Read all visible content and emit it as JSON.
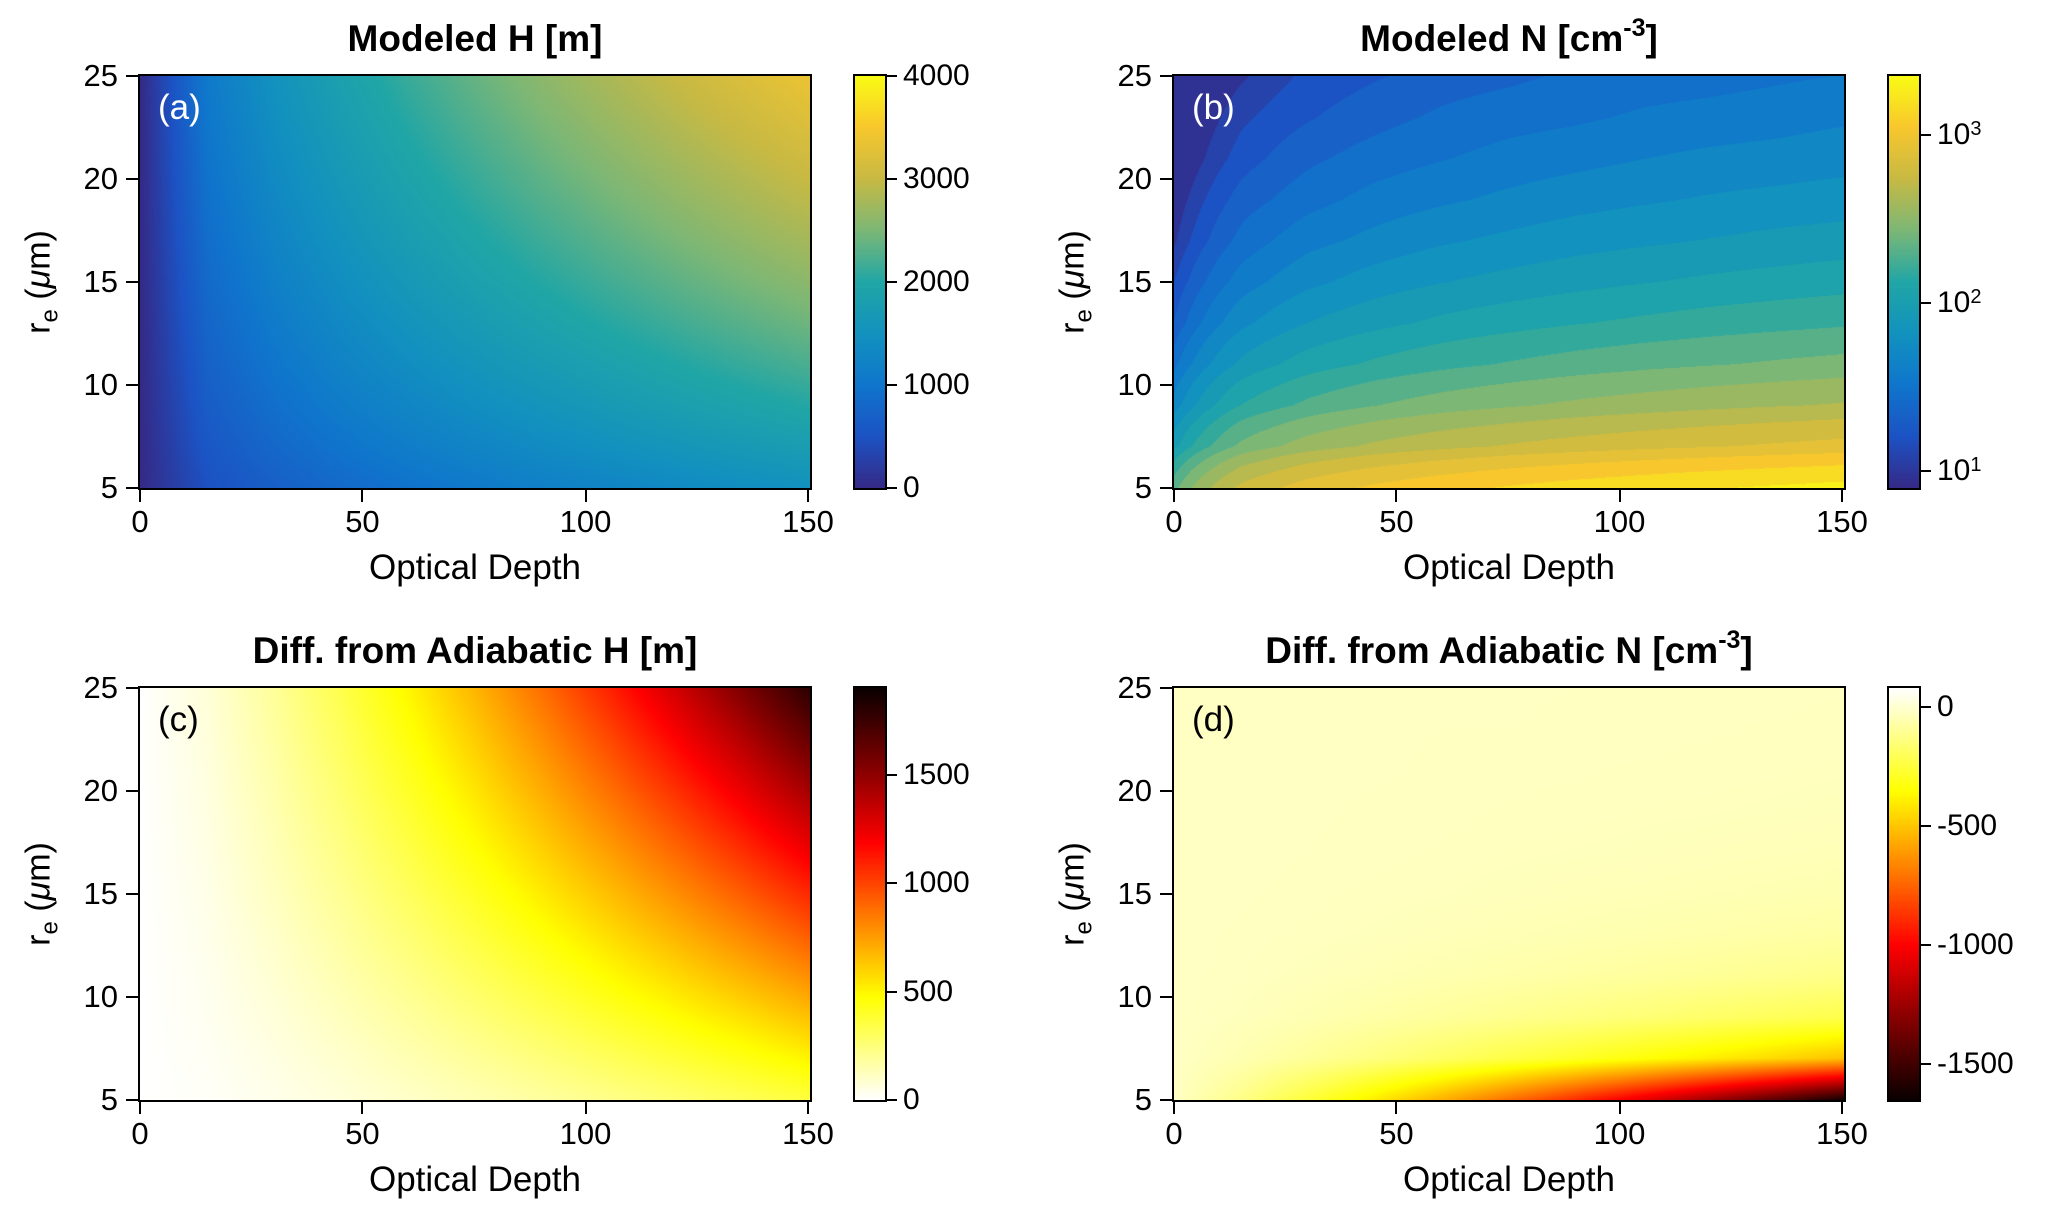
{
  "figure": {
    "background": "#ffffff"
  },
  "axes_shared": {
    "xlabel": "Optical Depth",
    "ylabel": {
      "pre": "r",
      "sub": "e",
      "open": " (",
      "mu": "μ",
      "close": "m)"
    },
    "colors": {
      "axis": "#000000",
      "parula_low": "#352a87",
      "parula_high": "#f9fb15",
      "hot_low": "#ffffff",
      "hot_high": "#000000"
    }
  },
  "chart_data": [
    {
      "type": "heatmap",
      "panel_label": "(a)",
      "panel_label_color": "#ffffff",
      "title": {
        "text": "Modeled H [m]",
        "sup": "",
        "close": ""
      },
      "xlabel": "Optical Depth",
      "ylabel": "r_e (μm)",
      "colormap": "parula",
      "scale": "linear",
      "clim": [
        0,
        4000
      ],
      "cbar": [
        0,
        4000
      ],
      "levels": 0,
      "xlim": [
        0,
        150
      ],
      "ylim": [
        5,
        25
      ],
      "x": [
        0,
        15,
        30,
        45,
        60,
        75,
        90,
        105,
        120,
        135,
        150
      ],
      "y": [
        5,
        7,
        9,
        11,
        13,
        15,
        17,
        19,
        21,
        23,
        25
      ],
      "x_ticks": [
        {
          "t": "0",
          "f": 0
        },
        {
          "t": "50",
          "f": 0.333
        },
        {
          "t": "100",
          "f": 0.667
        },
        {
          "t": "150",
          "f": 1
        }
      ],
      "y_ticks": [
        {
          "t": "5",
          "f": 0
        },
        {
          "t": "10",
          "f": 0.25
        },
        {
          "t": "15",
          "f": 0.5
        },
        {
          "t": "20",
          "f": 0.75
        },
        {
          "t": "25",
          "f": 1
        }
      ],
      "cbar_ticks": [
        {
          "t": "0",
          "f": 0
        },
        {
          "t": "1000",
          "f": 0.25
        },
        {
          "t": "2000",
          "f": 0.5
        },
        {
          "t": "3000",
          "f": 0.75
        },
        {
          "t": "4000",
          "f": 1
        }
      ],
      "values": [
        [
          0,
          476,
          674,
          825,
          953,
          1065,
          1167,
          1260,
          1347,
          1429,
          1506
        ],
        [
          0,
          564,
          797,
          976,
          1127,
          1260,
          1380,
          1491,
          1594,
          1691,
          1782
        ],
        [
          0,
          639,
          904,
          1107,
          1278,
          1429,
          1565,
          1691,
          1807,
          1917,
          2021
        ],
        [
          0,
          707,
          999,
          1224,
          1413,
          1580,
          1731,
          1869,
          1998,
          2120,
          2234
        ],
        [
          0,
          768,
          1086,
          1330,
          1536,
          1718,
          1881,
          2032,
          2172,
          2304,
          2429
        ],
        [
          0,
          825,
          1167,
          1429,
          1650,
          1845,
          2021,
          2183,
          2333,
          2475,
          2609
        ],
        [
          0,
          878,
          1242,
          1521,
          1756,
          1964,
          2151,
          2324,
          2484,
          2635,
          2777
        ],
        [
          0,
          928,
          1313,
          1608,
          1857,
          2076,
          2274,
          2457,
          2626,
          2785,
          2936
        ],
        [
          0,
          976,
          1380,
          1691,
          1952,
          2183,
          2391,
          2583,
          2761,
          2929,
          3087
        ],
        [
          0,
          1021,
          1445,
          1769,
          2043,
          2284,
          2502,
          2703,
          2890,
          3065,
          3231
        ],
        [
          0,
          1065,
          1506,
          1844,
          2130,
          2381,
          2609,
          2818,
          3012,
          3195,
          3368
        ]
      ]
    },
    {
      "type": "heatmap",
      "panel_label": "(b)",
      "panel_label_color": "#ffffff",
      "title": {
        "text": "Modeled N [cm",
        "sup": "-3",
        "close": "]"
      },
      "xlabel": "Optical Depth",
      "ylabel": "r_e (μm)",
      "colormap": "parula",
      "scale": "log10",
      "clim": [
        0.9,
        3.35
      ],
      "cbar": [
        0.9,
        3.35
      ],
      "levels": 20,
      "xlim": [
        0,
        150
      ],
      "ylim": [
        5,
        25
      ],
      "x": [
        0,
        15,
        30,
        45,
        60,
        75,
        90,
        105,
        120,
        135,
        150
      ],
      "y": [
        5,
        7,
        9,
        11,
        13,
        15,
        17,
        19,
        21,
        23,
        25
      ],
      "x_ticks": [
        {
          "t": "0",
          "f": 0
        },
        {
          "t": "50",
          "f": 0.333
        },
        {
          "t": "100",
          "f": 0.667
        },
        {
          "t": "150",
          "f": 1
        }
      ],
      "y_ticks": [
        {
          "t": "5",
          "f": 0
        },
        {
          "t": "10",
          "f": 0.25
        },
        {
          "t": "15",
          "f": 0.5
        },
        {
          "t": "20",
          "f": 0.75
        },
        {
          "t": "25",
          "f": 1
        }
      ],
      "cbar_ticks": [
        {
          "t": "10",
          "s": "1",
          "f": 0.041
        },
        {
          "t": "10",
          "s": "2",
          "f": 0.449
        },
        {
          "t": "10",
          "s": "3",
          "f": 0.857
        }
      ],
      "values": [
        [
          213,
          582,
          823,
          1008,
          1164,
          1302,
          1426,
          1540,
          1646,
          1746,
          1841
        ],
        [
          92,
          251,
          355,
          435,
          502,
          561,
          615,
          664,
          710,
          753,
          794
        ],
        [
          49,
          134,
          189,
          232,
          268,
          299,
          328,
          354,
          379,
          402,
          423
        ],
        [
          30,
          81,
          115,
          140,
          162,
          181,
          199,
          215,
          229,
          243,
          256
        ],
        [
          19,
          53,
          76,
          92,
          107,
          119,
          131,
          141,
          151,
          160,
          169
        ],
        [
          14,
          37,
          53,
          65,
          75,
          83,
          91,
          99,
          106,
          112,
          118
        ],
        [
          10,
          27,
          39,
          47,
          55,
          61,
          67,
          72,
          77,
          82,
          86
        ],
        [
          8,
          21,
          29,
          36,
          41,
          46,
          51,
          55,
          59,
          62,
          65
        ],
        [
          6,
          16,
          23,
          28,
          32,
          36,
          39,
          43,
          46,
          48,
          51
        ],
        [
          5,
          13,
          18,
          22,
          26,
          29,
          31,
          34,
          36,
          38,
          41
        ],
        [
          4,
          10,
          15,
          18,
          21,
          23,
          26,
          28,
          29,
          31,
          33
        ]
      ]
    },
    {
      "type": "heatmap",
      "panel_label": "(c)",
      "panel_label_color": "#000000",
      "title": {
        "text": "Diff. from Adiabatic H [m]",
        "sup": "",
        "close": ""
      },
      "xlabel": "Optical Depth",
      "ylabel": "r_e (μm)",
      "colormap": "hotr",
      "scale": "linear",
      "clim": [
        0,
        1900
      ],
      "cbar": [
        0,
        1900
      ],
      "levels": 0,
      "xlim": [
        0,
        150
      ],
      "ylim": [
        5,
        25
      ],
      "x": [
        0,
        15,
        30,
        45,
        60,
        75,
        90,
        105,
        120,
        135,
        150
      ],
      "y": [
        5,
        7,
        9,
        11,
        13,
        15,
        17,
        19,
        21,
        23,
        25
      ],
      "x_ticks": [
        {
          "t": "0",
          "f": 0
        },
        {
          "t": "50",
          "f": 0.333
        },
        {
          "t": "100",
          "f": 0.667
        },
        {
          "t": "150",
          "f": 1
        }
      ],
      "y_ticks": [
        {
          "t": "5",
          "f": 0
        },
        {
          "t": "10",
          "f": 0.25
        },
        {
          "t": "15",
          "f": 0.5
        },
        {
          "t": "20",
          "f": 0.75
        },
        {
          "t": "25",
          "f": 1
        }
      ],
      "cbar_ticks": [
        {
          "t": "0",
          "f": 0
        },
        {
          "t": "500",
          "f": 0.263
        },
        {
          "t": "1000",
          "f": 0.526
        },
        {
          "t": "1500",
          "f": 0.789
        }
      ],
      "values": [
        [
          0,
          14,
          38,
          67,
          100,
          136,
          176,
          218,
          263,
          310,
          360
        ],
        [
          0,
          20,
          53,
          93,
          140,
          191,
          246,
          306,
          369,
          434,
          504
        ],
        [
          0,
          26,
          68,
          120,
          179,
          245,
          317,
          393,
          474,
          558,
          648
        ],
        [
          0,
          31,
          83,
          147,
          219,
          300,
          387,
          481,
          579,
          682,
          792
        ],
        [
          0,
          37,
          98,
          173,
          259,
          354,
          457,
          568,
          684,
          806,
          935
        ],
        [
          0,
          43,
          114,
          200,
          299,
          408,
          528,
          655,
          790,
          930,
          1079
        ],
        [
          0,
          49,
          129,
          227,
          339,
          463,
          598,
          743,
          895,
          1054,
          1223
        ],
        [
          0,
          54,
          144,
          253,
          379,
          517,
          668,
          830,
          1000,
          1178,
          1367
        ],
        [
          0,
          60,
          159,
          280,
          419,
          572,
          739,
          918,
          1106,
          1302,
          1511
        ],
        [
          0,
          66,
          174,
          307,
          459,
          626,
          809,
          1005,
          1211,
          1426,
          1655
        ],
        [
          0,
          72,
          189,
          333,
          498,
          681,
          880,
          1092,
          1316,
          1550,
          1799
        ]
      ]
    },
    {
      "type": "heatmap",
      "panel_label": "(d)",
      "panel_label_color": "#000000",
      "title": {
        "text": "Diff. from Adiabatic N [cm",
        "sup": "-3",
        "close": "]"
      },
      "xlabel": "Optical Depth",
      "ylabel": "r_e (μm)",
      "colormap": "hotr",
      "scale": "linear",
      "clim": [
        80,
        -1650
      ],
      "cbar": [
        -1650,
        80
      ],
      "levels": 0,
      "xlim": [
        0,
        150
      ],
      "ylim": [
        5,
        25
      ],
      "x": [
        0,
        15,
        30,
        45,
        60,
        75,
        90,
        105,
        120,
        135,
        150
      ],
      "y": [
        5,
        7,
        9,
        11,
        13,
        15,
        17,
        19,
        21,
        23,
        25
      ],
      "x_ticks": [
        {
          "t": "0",
          "f": 0
        },
        {
          "t": "50",
          "f": 0.333
        },
        {
          "t": "100",
          "f": 0.667
        },
        {
          "t": "150",
          "f": 1
        }
      ],
      "y_ticks": [
        {
          "t": "5",
          "f": 0
        },
        {
          "t": "10",
          "f": 0.25
        },
        {
          "t": "15",
          "f": 0.5
        },
        {
          "t": "20",
          "f": 0.75
        },
        {
          "t": "25",
          "f": 1
        }
      ],
      "cbar_ticks": [
        {
          "t": "0",
          "f": 0.954
        },
        {
          "t": "-500",
          "f": 0.665
        },
        {
          "t": "-1000",
          "f": 0.376
        },
        {
          "t": "-1500",
          "f": 0.087
        }
      ],
      "values": [
        [
          -20,
          -121,
          -252,
          -397,
          -552,
          -715,
          -886,
          -1063,
          -1241,
          -1428,
          -1620
        ],
        [
          -20,
          -51,
          -91,
          -135,
          -183,
          -233,
          -285,
          -339,
          -394,
          -451,
          -510
        ],
        [
          -20,
          -33,
          -50,
          -68,
          -88,
          -109,
          -131,
          -153,
          -176,
          -200,
          -225
        ],
        [
          -20,
          -26,
          -35,
          -44,
          -54,
          -64,
          -75,
          -86,
          -97,
          -109,
          -121
        ],
        [
          -20,
          -24,
          -28,
          -33,
          -39,
          -45,
          -51,
          -57,
          -63,
          -70,
          -76
        ],
        [
          -20,
          -22,
          -25,
          -28,
          -31,
          -35,
          -39,
          -42,
          -46,
          -50,
          -54
        ],
        [
          -20,
          -21,
          -23,
          -25,
          -27,
          -30,
          -32,
          -34,
          -37,
          -39,
          -42
        ],
        [
          -20,
          -21,
          -22,
          -24,
          -25,
          -27,
          -28,
          -30,
          -31,
          -33,
          -35
        ],
        [
          -20,
          -21,
          -22,
          -22,
          -24,
          -25,
          -26,
          -27,
          -28,
          -29,
          -31
        ],
        [
          -20,
          -20,
          -21,
          -22,
          -23,
          -23,
          -24,
          -25,
          -26,
          -27,
          -28
        ],
        [
          -20,
          -20,
          -21,
          -21,
          -22,
          -22,
          -23,
          -24,
          -24,
          -25,
          -26
        ]
      ]
    }
  ]
}
